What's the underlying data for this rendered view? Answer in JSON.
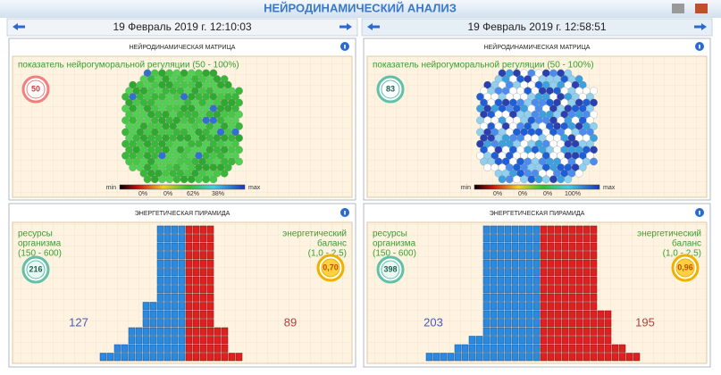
{
  "header": {
    "title": "НЕЙРОДИНАМИЧЕСКИЙ АНАЛИЗ"
  },
  "panels": [
    {
      "date": "19 Февраль 2019 г. 12:10:03",
      "matrix": {
        "title": "НЕЙРОДИНАМИЧЕСКАЯ МАТРИЦА",
        "subtitle": "показатель нейрогуморальной регуляции (50 - 100%)",
        "score": 50,
        "scale": {
          "min": "min",
          "max": "max",
          "labels": [
            "0%",
            "0%",
            "62%",
            "38%"
          ]
        }
      },
      "pyramid": {
        "title": "ЭНЕРГЕТИЧЕСКАЯ ПИРАМИДА",
        "resources_label": [
          "ресурсы",
          "организма",
          "(150 - 600)"
        ],
        "resources": 216,
        "balance_label": [
          "энергетический",
          "баланс",
          "(1,0 - 2,5)"
        ],
        "balance": "0,70",
        "left": 127,
        "right": 89
      }
    },
    {
      "date": "19 Февраль 2019 г. 12:58:51",
      "matrix": {
        "title": "НЕЙРОДИНАМИЧЕСКАЯ МАТРИЦА",
        "subtitle": "показатель нейрогуморальной регуляции (50 - 100%)",
        "score": 83,
        "scale": {
          "min": "min",
          "max": "max",
          "labels": [
            "0%",
            "0%",
            "0%",
            "100%"
          ]
        }
      },
      "pyramid": {
        "title": "ЭНЕРГЕТИЧЕСКАЯ ПИРАМИДА",
        "resources_label": [
          "ресурсы",
          "организма",
          "(150 - 600)"
        ],
        "resources": 398,
        "balance_label": [
          "энергетический",
          "баланс",
          "(1,0 - 2,5)"
        ],
        "balance": "0,96",
        "left": 203,
        "right": 195
      }
    }
  ]
}
